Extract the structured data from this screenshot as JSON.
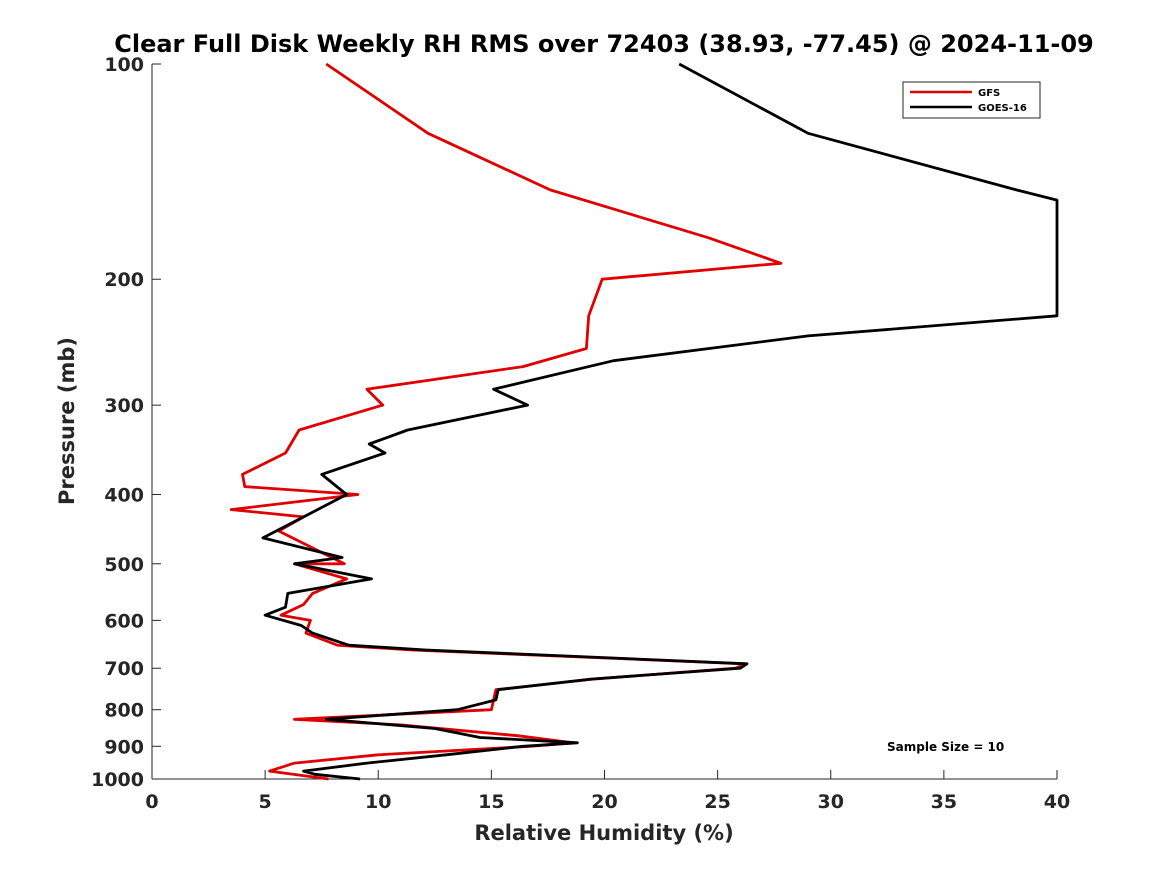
{
  "chart_data": {
    "type": "line",
    "title": "Clear Full Disk Weekly RH RMS over 72403 (38.93, -77.45) @ 2024-11-09",
    "xlabel": "Relative Humidity (%)",
    "ylabel": "Pressure (mb)",
    "xlim": [
      0,
      40
    ],
    "ylim": [
      100,
      1000
    ],
    "y_scale": "log",
    "y_reversed": true,
    "xticks": [
      "0",
      "5",
      "10",
      "15",
      "20",
      "25",
      "30",
      "35",
      "40"
    ],
    "yticks": [
      "100",
      "200",
      "300",
      "400",
      "500",
      "600",
      "700",
      "800",
      "900",
      "1000"
    ],
    "legend_position": "top-right",
    "grid": false,
    "annotation": "Sample Size = 10",
    "series": [
      {
        "name": "GFS",
        "color": "#e00000",
        "points": [
          [
            7.7,
            100
          ],
          [
            12.2,
            125
          ],
          [
            17.6,
            150
          ],
          [
            24.6,
            175
          ],
          [
            27.8,
            190
          ],
          [
            19.9,
            200
          ],
          [
            19.3,
            225
          ],
          [
            19.2,
            250
          ],
          [
            16.4,
            265
          ],
          [
            9.5,
            285
          ],
          [
            10.2,
            300
          ],
          [
            6.5,
            325
          ],
          [
            5.9,
            350
          ],
          [
            4.0,
            375
          ],
          [
            4.1,
            390
          ],
          [
            9.1,
            400
          ],
          [
            3.5,
            420
          ],
          [
            6.7,
            430
          ],
          [
            5.6,
            450
          ],
          [
            8.5,
            500
          ],
          [
            6.3,
            500
          ],
          [
            8.6,
            525
          ],
          [
            7.1,
            550
          ],
          [
            6.7,
            570
          ],
          [
            5.7,
            590
          ],
          [
            7.0,
            600
          ],
          [
            6.8,
            625
          ],
          [
            8.2,
            650
          ],
          [
            11.5,
            660
          ],
          [
            26.2,
            690
          ],
          [
            25.8,
            700
          ],
          [
            19.5,
            725
          ],
          [
            15.2,
            750
          ],
          [
            15.1,
            775
          ],
          [
            15.0,
            800
          ],
          [
            6.3,
            825
          ],
          [
            11.0,
            840
          ],
          [
            16.2,
            870
          ],
          [
            18.6,
            890
          ],
          [
            16.7,
            900
          ],
          [
            10.0,
            925
          ],
          [
            6.3,
            950
          ],
          [
            5.2,
            975
          ],
          [
            7.8,
            1000
          ]
        ]
      },
      {
        "name": "GOES-16",
        "color": "#000000",
        "points": [
          [
            23.3,
            100
          ],
          [
            29.0,
            125
          ],
          [
            38.2,
            150
          ],
          [
            40.0,
            155
          ],
          [
            40.0,
            225
          ],
          [
            29.0,
            240
          ],
          [
            20.4,
            260
          ],
          [
            15.1,
            285
          ],
          [
            16.6,
            300
          ],
          [
            11.3,
            325
          ],
          [
            9.6,
            340
          ],
          [
            10.3,
            350
          ],
          [
            7.5,
            375
          ],
          [
            8.6,
            400
          ],
          [
            6.7,
            430
          ],
          [
            4.9,
            460
          ],
          [
            8.4,
            490
          ],
          [
            6.3,
            500
          ],
          [
            9.7,
            525
          ],
          [
            6.0,
            550
          ],
          [
            5.9,
            575
          ],
          [
            5.0,
            590
          ],
          [
            6.6,
            610
          ],
          [
            7.1,
            625
          ],
          [
            8.7,
            650
          ],
          [
            12.1,
            660
          ],
          [
            26.3,
            690
          ],
          [
            26.0,
            700
          ],
          [
            19.4,
            725
          ],
          [
            15.3,
            750
          ],
          [
            15.2,
            775
          ],
          [
            13.5,
            800
          ],
          [
            7.7,
            825
          ],
          [
            12.5,
            850
          ],
          [
            14.5,
            875
          ],
          [
            18.8,
            890
          ],
          [
            16.4,
            900
          ],
          [
            13.0,
            925
          ],
          [
            9.5,
            950
          ],
          [
            6.7,
            975
          ],
          [
            7.2,
            985
          ],
          [
            9.2,
            1000
          ]
        ]
      }
    ]
  }
}
